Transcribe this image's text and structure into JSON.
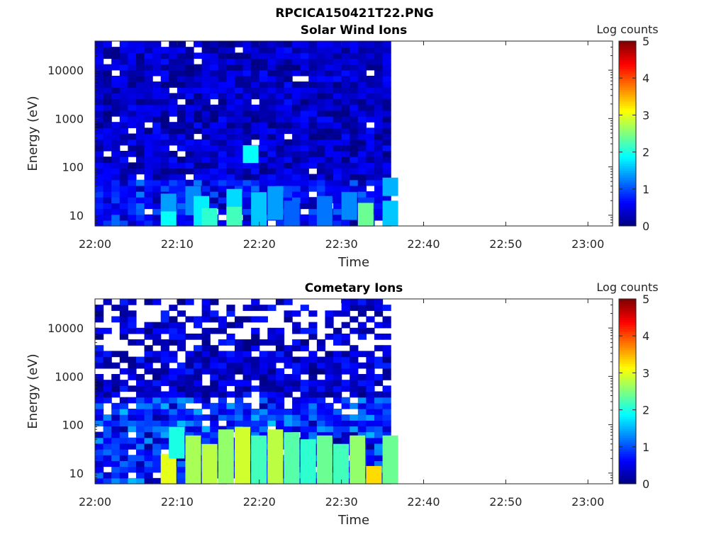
{
  "figure_title": "RPCICA150421T22.PNG",
  "colors": {
    "jet": [
      "#00007f",
      "#0000ff",
      "#007fff",
      "#00ffff",
      "#7fff7f",
      "#ffff00",
      "#ff7f00",
      "#ff0000",
      "#7f0000"
    ]
  },
  "chart_data": [
    {
      "type": "heatmap",
      "title": "Solar Wind Ions",
      "xlabel": "Time",
      "ylabel": "Energy (eV)",
      "colorbar_label": "Log counts",
      "colorbar_ticks": [
        "0",
        "1",
        "2",
        "3",
        "4",
        "5"
      ],
      "clim": [
        0,
        5
      ],
      "x_ticks": [
        "22:00",
        "22:10",
        "22:20",
        "22:30",
        "22:40",
        "22:50",
        "23:00"
      ],
      "x_range": [
        "22:00",
        "23:03"
      ],
      "data_end": "22:36",
      "y_scale": "log",
      "y_ticks": [
        "10",
        "100",
        "1000",
        "10000"
      ],
      "y_range": [
        6,
        40000
      ],
      "background": "low",
      "bright_cells": [
        {
          "time": "22:08",
          "energy_min": 12,
          "energy_max": 28,
          "value": 1.4
        },
        {
          "time": "22:08",
          "energy_min": 6,
          "energy_max": 12,
          "value": 1.9
        },
        {
          "time": "22:11",
          "energy_min": 10,
          "energy_max": 40,
          "value": 1.3
        },
        {
          "time": "22:12",
          "energy_min": 6,
          "energy_max": 25,
          "value": 1.8
        },
        {
          "time": "22:13",
          "energy_min": 6,
          "energy_max": 14,
          "value": 2.1
        },
        {
          "time": "22:16",
          "energy_min": 8,
          "energy_max": 35,
          "value": 1.7
        },
        {
          "time": "22:16",
          "energy_min": 6,
          "energy_max": 15,
          "value": 2.2
        },
        {
          "time": "22:18",
          "energy_min": 120,
          "energy_max": 280,
          "value": 1.9
        },
        {
          "time": "22:19",
          "energy_min": 6,
          "energy_max": 30,
          "value": 1.6
        },
        {
          "time": "22:21",
          "energy_min": 8,
          "energy_max": 40,
          "value": 1.4
        },
        {
          "time": "22:23",
          "energy_min": 6,
          "energy_max": 20,
          "value": 1.1
        },
        {
          "time": "22:27",
          "energy_min": 6,
          "energy_max": 25,
          "value": 1.2
        },
        {
          "time": "22:30",
          "energy_min": 8,
          "energy_max": 30,
          "value": 1.3
        },
        {
          "time": "22:32",
          "energy_min": 6,
          "energy_max": 18,
          "value": 2.4
        },
        {
          "time": "22:35",
          "energy_min": 6,
          "energy_max": 20,
          "value": 1.6
        },
        {
          "time": "22:35",
          "energy_min": 25,
          "energy_max": 60,
          "value": 1.5
        }
      ]
    },
    {
      "type": "heatmap",
      "title": "Cometary Ions",
      "xlabel": "Time",
      "ylabel": "Energy (eV)",
      "colorbar_label": "Log counts",
      "colorbar_ticks": [
        "0",
        "1",
        "2",
        "3",
        "4",
        "5"
      ],
      "clim": [
        0,
        5
      ],
      "x_ticks": [
        "22:00",
        "22:10",
        "22:20",
        "22:30",
        "22:40",
        "22:50",
        "23:00"
      ],
      "x_range": [
        "22:00",
        "23:03"
      ],
      "data_end": "22:36",
      "y_scale": "log",
      "y_ticks": [
        "10",
        "100",
        "1000",
        "10000"
      ],
      "y_range": [
        6,
        40000
      ],
      "background": "sparse-high",
      "bright_cells": [
        {
          "time": "22:08",
          "energy_min": 6,
          "energy_max": 25,
          "value": 3.0
        },
        {
          "time": "22:09",
          "energy_min": 20,
          "energy_max": 90,
          "value": 2.0
        },
        {
          "time": "22:11",
          "energy_min": 6,
          "energy_max": 60,
          "value": 2.7
        },
        {
          "time": "22:13",
          "energy_min": 6,
          "energy_max": 40,
          "value": 2.8
        },
        {
          "time": "22:15",
          "energy_min": 6,
          "energy_max": 80,
          "value": 2.6
        },
        {
          "time": "22:17",
          "energy_min": 6,
          "energy_max": 90,
          "value": 2.9
        },
        {
          "time": "22:19",
          "energy_min": 6,
          "energy_max": 60,
          "value": 2.2
        },
        {
          "time": "22:21",
          "energy_min": 6,
          "energy_max": 80,
          "value": 2.8
        },
        {
          "time": "22:23",
          "energy_min": 6,
          "energy_max": 70,
          "value": 2.3
        },
        {
          "time": "22:25",
          "energy_min": 6,
          "energy_max": 50,
          "value": 2.1
        },
        {
          "time": "22:27",
          "energy_min": 6,
          "energy_max": 60,
          "value": 2.4
        },
        {
          "time": "22:29",
          "energy_min": 6,
          "energy_max": 40,
          "value": 2.2
        },
        {
          "time": "22:31",
          "energy_min": 6,
          "energy_max": 60,
          "value": 2.6
        },
        {
          "time": "22:33",
          "energy_min": 6,
          "energy_max": 14,
          "value": 3.3
        },
        {
          "time": "22:35",
          "energy_min": 6,
          "energy_max": 60,
          "value": 2.4
        }
      ]
    }
  ]
}
